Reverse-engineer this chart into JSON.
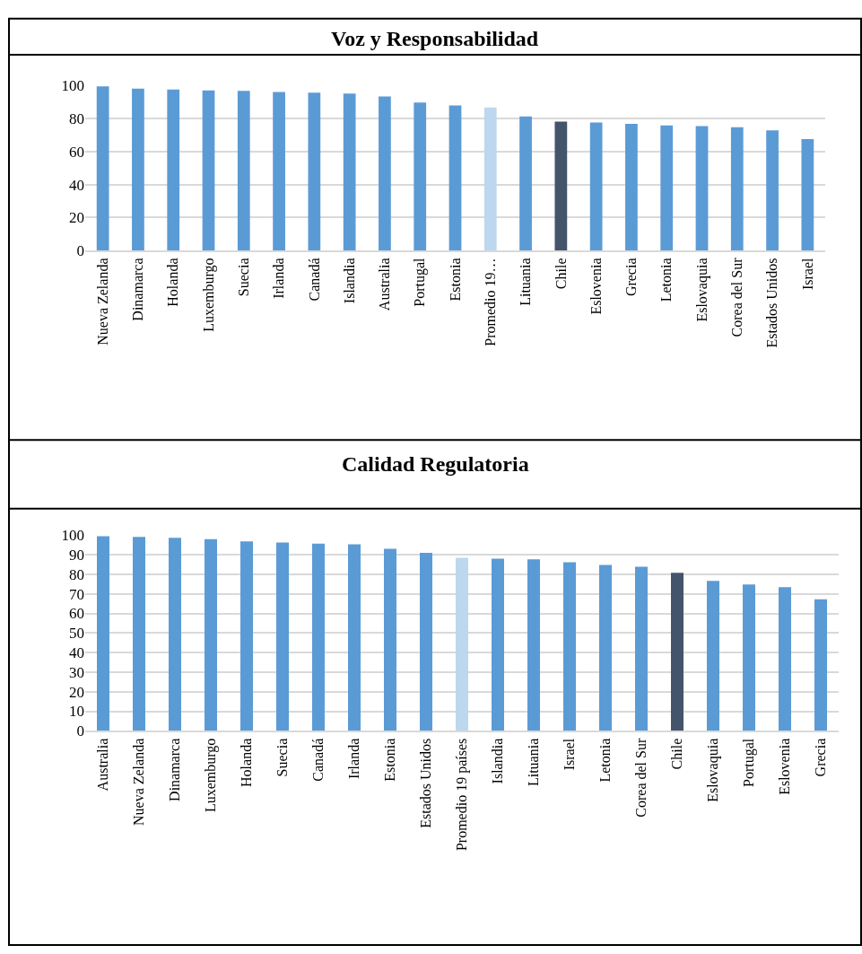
{
  "chart_data": [
    {
      "type": "bar",
      "title": "Voz y Responsabilidad",
      "categories": [
        "Nueva Zelanda",
        "Dinamarca",
        "Holanda",
        "Luxemburgo",
        "Suecia",
        "Irlanda",
        "Canadá",
        "Islandia",
        "Australia",
        "Portugal",
        "Estonia",
        "Promedio 19…",
        "Lituania",
        "Chile",
        "Eslovenia",
        "Grecia",
        "Letonia",
        "Eslovaquia",
        "Corea del Sur",
        "Estados Unidos",
        "Israel"
      ],
      "values": [
        99.5,
        98.2,
        97.7,
        97.1,
        96.8,
        96.2,
        95.7,
        95.2,
        93.4,
        89.8,
        88.0,
        86.8,
        81.3,
        78.2,
        77.7,
        76.8,
        75.9,
        75.4,
        74.8,
        72.9,
        67.5
      ],
      "colors": [
        "#5b9bd5",
        "#5b9bd5",
        "#5b9bd5",
        "#5b9bd5",
        "#5b9bd5",
        "#5b9bd5",
        "#5b9bd5",
        "#5b9bd5",
        "#5b9bd5",
        "#5b9bd5",
        "#5b9bd5",
        "#bdd7ee",
        "#5b9bd5",
        "#44546a",
        "#5b9bd5",
        "#5b9bd5",
        "#5b9bd5",
        "#5b9bd5",
        "#5b9bd5",
        "#5b9bd5",
        "#5b9bd5"
      ],
      "ylim": [
        0,
        100
      ],
      "yticks": [
        0,
        20,
        40,
        60,
        80,
        100
      ],
      "grid": "y",
      "legend": false
    },
    {
      "type": "bar",
      "title": "Calidad Regulatoria",
      "categories": [
        "Australia",
        "Nueva Zelanda",
        "Dinamarca",
        "Luxemburgo",
        "Holanda",
        "Suecia",
        "Canadá",
        "Irlanda",
        "Estonia",
        "Estados Unidos",
        "Promedio 19 países",
        "Islandia",
        "Lituania",
        "Israel",
        "Letonia",
        "Corea del Sur",
        "Chile",
        "Eslovaquia",
        "Portugal",
        "Eslovenia",
        "Grecia"
      ],
      "values": [
        99.5,
        99.1,
        98.6,
        98.0,
        96.8,
        96.2,
        95.7,
        95.3,
        93.0,
        91.0,
        88.5,
        88.0,
        87.6,
        86.2,
        84.8,
        83.9,
        80.8,
        76.6,
        74.8,
        73.4,
        67.2
      ],
      "colors": [
        "#5b9bd5",
        "#5b9bd5",
        "#5b9bd5",
        "#5b9bd5",
        "#5b9bd5",
        "#5b9bd5",
        "#5b9bd5",
        "#5b9bd5",
        "#5b9bd5",
        "#5b9bd5",
        "#bdd7ee",
        "#5b9bd5",
        "#5b9bd5",
        "#5b9bd5",
        "#5b9bd5",
        "#5b9bd5",
        "#44546a",
        "#5b9bd5",
        "#5b9bd5",
        "#5b9bd5",
        "#5b9bd5"
      ],
      "ylim": [
        0,
        100
      ],
      "yticks": [
        0,
        10,
        20,
        30,
        40,
        50,
        60,
        70,
        80,
        90,
        100
      ],
      "grid": "y",
      "legend": false
    }
  ]
}
